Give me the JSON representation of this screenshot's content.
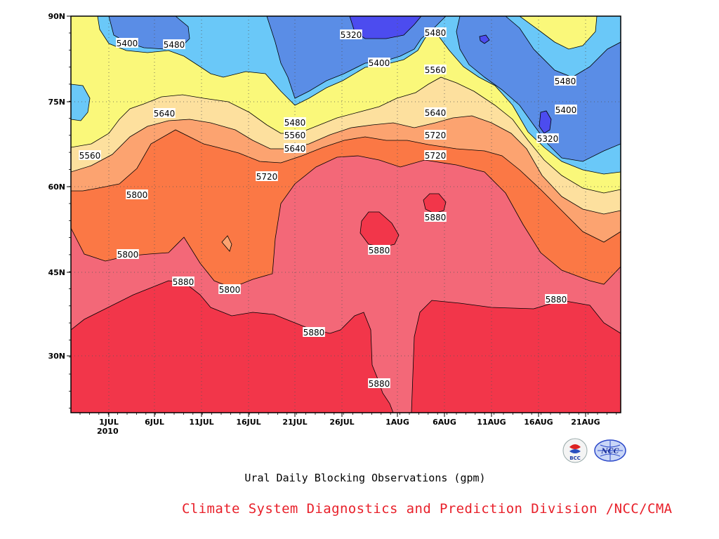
{
  "chart_data": {
    "type": "contour",
    "xlabel": "",
    "ylabel": "",
    "x_ticks": [
      "1JUL",
      "6JUL",
      "11JUL",
      "16JUL",
      "21JUL",
      "26JUL",
      "1AUG",
      "6AUG",
      "11AUG",
      "16AUG",
      "21AUG"
    ],
    "x_year_label": "2010",
    "y_ticks": [
      "90N",
      "75N",
      "60N",
      "45N",
      "30N"
    ],
    "xlim": [
      "2010-06-27",
      "2010-08-25"
    ],
    "ylim": [
      20,
      90
    ],
    "grid": true,
    "contour_levels": [
      5320,
      5400,
      5480,
      5560,
      5640,
      5720,
      5800,
      5880
    ],
    "fill_colors": {
      "5320": "#4c4cef",
      "5400": "#5a8de6",
      "5480": "#6ac8f8",
      "5560": "#faf87a",
      "5640": "#fde09e",
      "5720": "#fca370",
      "5800": "#fb7845",
      "5880": "#f36878",
      "5880+": "#f2364a"
    },
    "contour_labels": [
      "5400",
      "5480",
      "5320",
      "5480",
      "5400",
      "5560",
      "5480",
      "5400",
      "5640",
      "5480",
      "5560",
      "5640",
      "5640",
      "5720",
      "5320",
      "5560",
      "5720",
      "5720",
      "5800",
      "5880",
      "5800",
      "5880",
      "5880",
      "5800",
      "5880",
      "5880",
      "5880"
    ]
  },
  "caption": "Ural Daily Blocking Observations (gpm)",
  "credit": "Climate System Diagnostics and Prediction Division /NCC/CMA",
  "logos": {
    "bcc": "BCC",
    "ncc": "NCC"
  }
}
